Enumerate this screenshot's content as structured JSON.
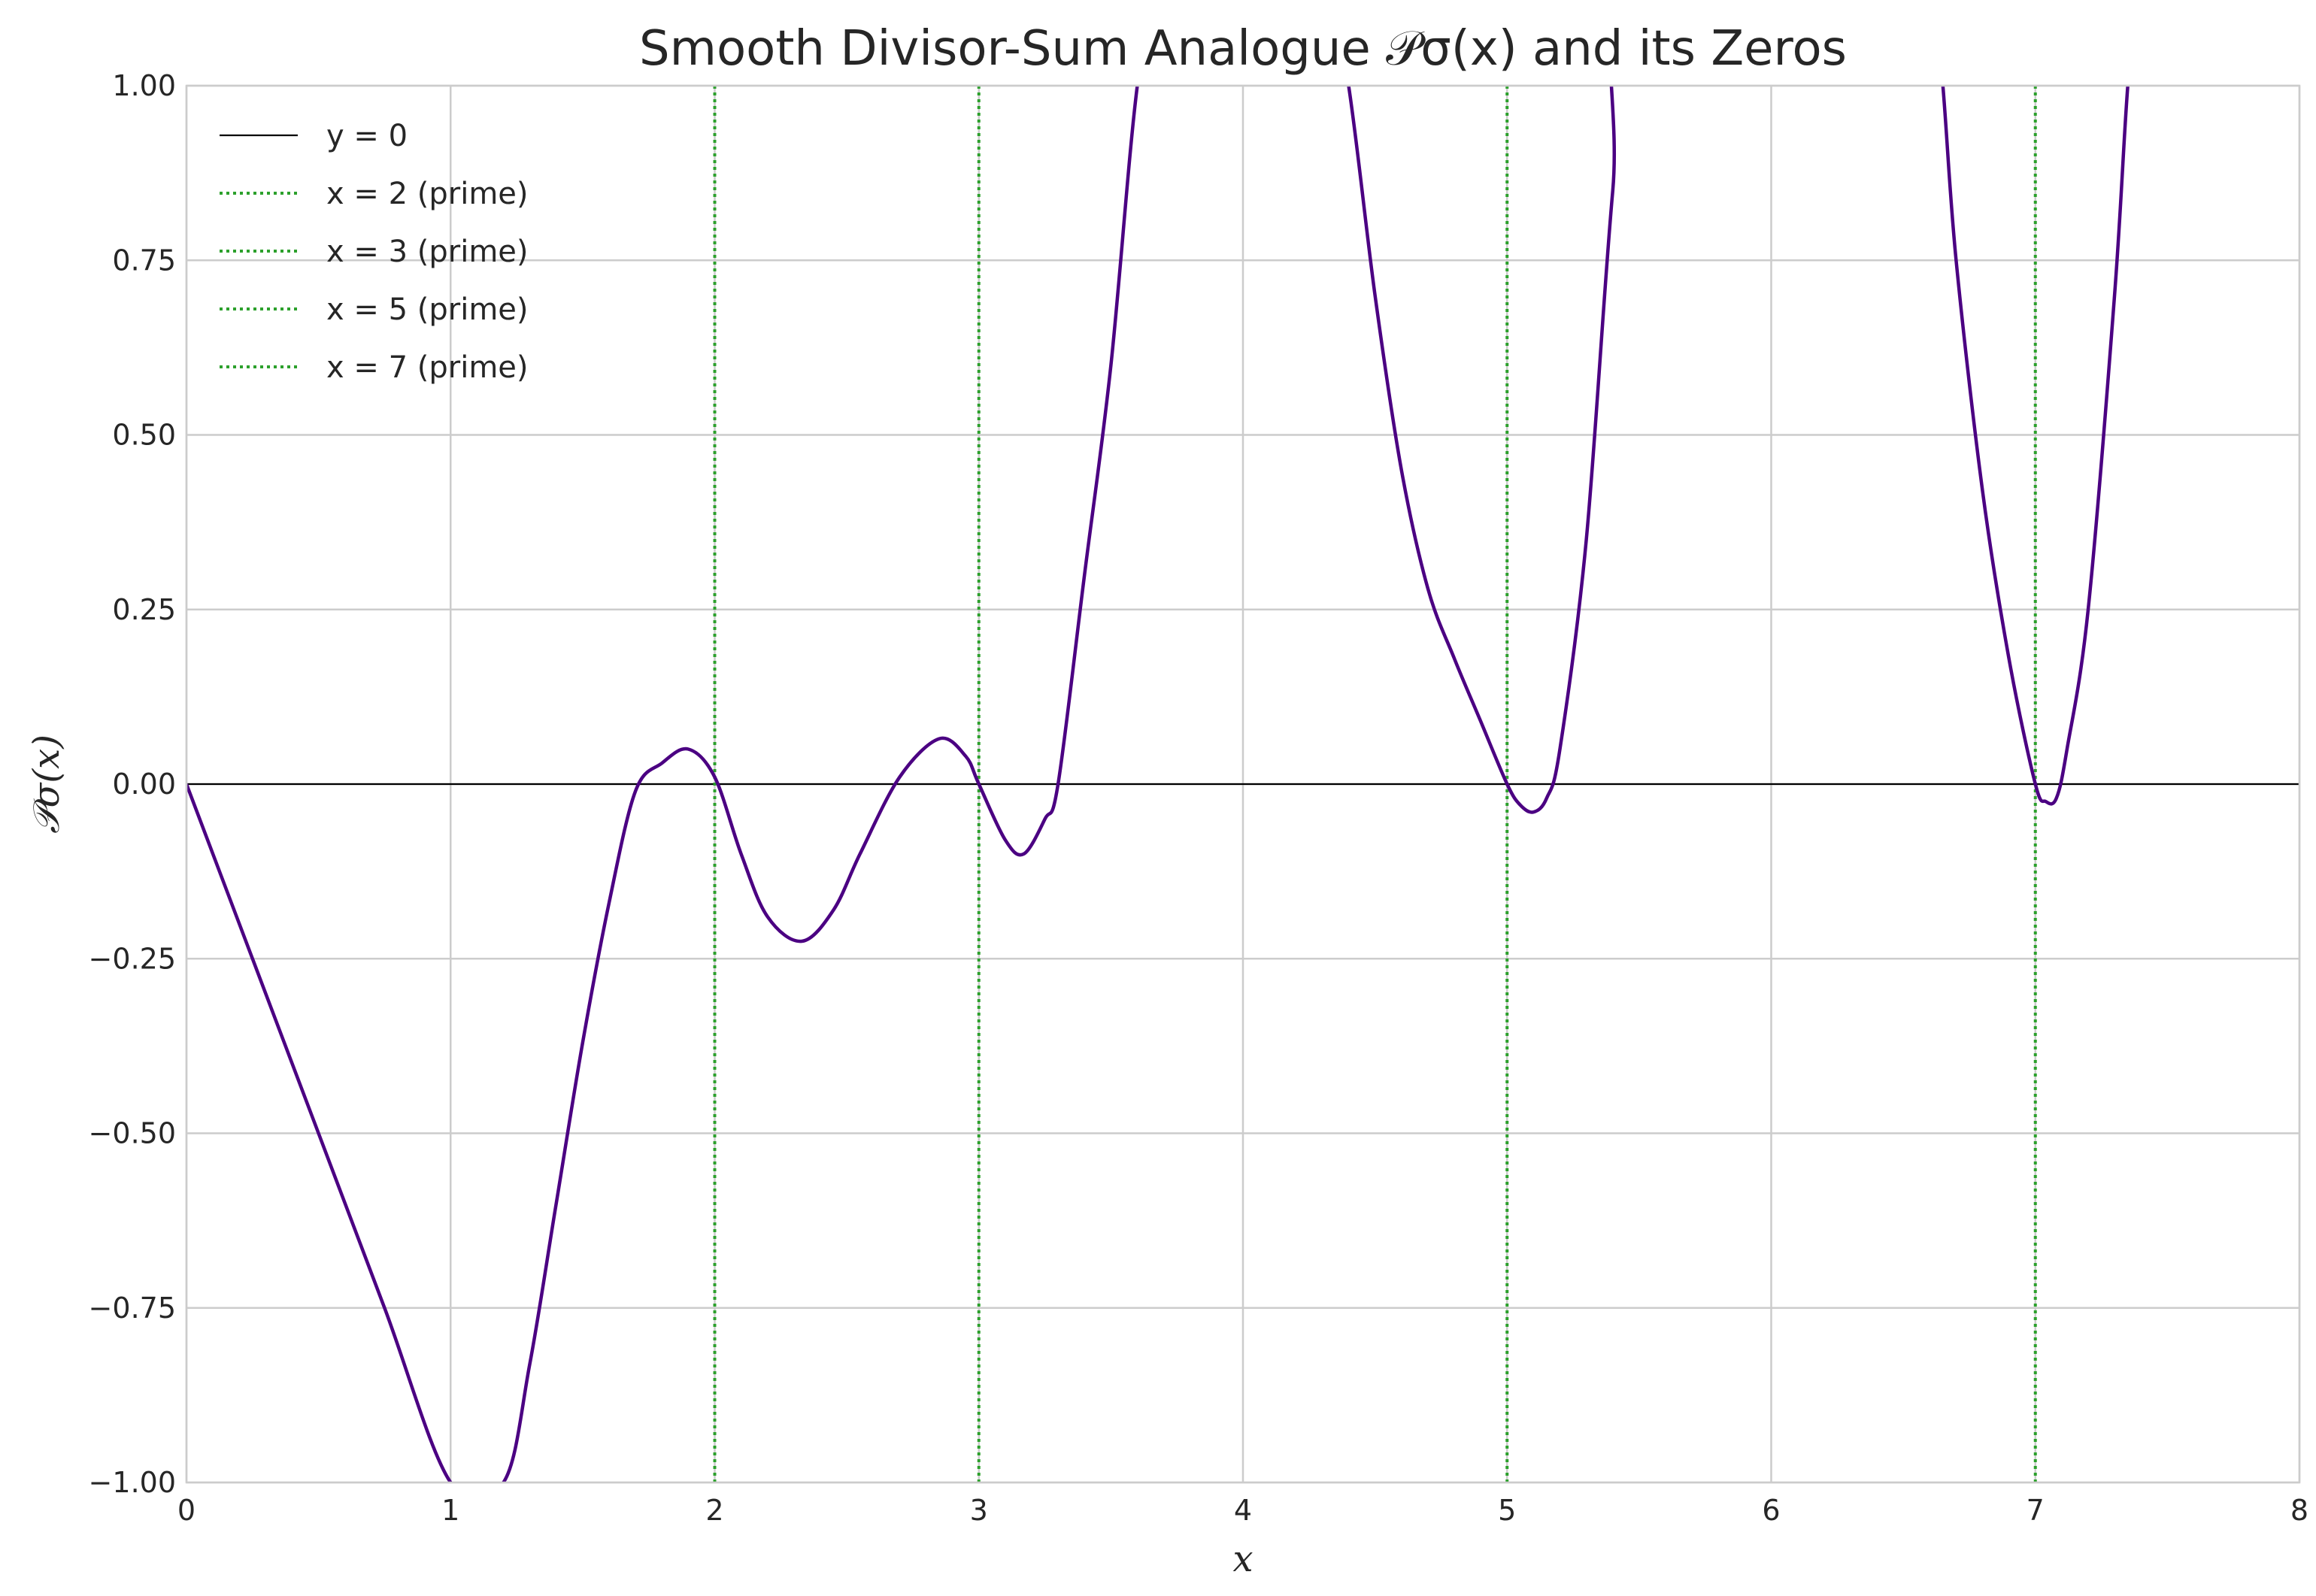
{
  "chart_data": {
    "type": "line",
    "title": "Smooth Divisor-Sum Analogue 𝒫σ(x) and its Zeros",
    "xlabel": "x",
    "ylabel": "𝒫σ(x)",
    "xlim": [
      0,
      8
    ],
    "ylim": [
      -1.0,
      1.0
    ],
    "xticks": [
      0,
      1,
      2,
      3,
      4,
      5,
      6,
      7,
      8
    ],
    "xtick_labels": [
      "0",
      "1",
      "2",
      "3",
      "4",
      "5",
      "6",
      "7",
      "8"
    ],
    "yticks": [
      -1.0,
      -0.75,
      -0.5,
      -0.25,
      0.0,
      0.25,
      0.5,
      0.75,
      1.0
    ],
    "ytick_labels": [
      "−1.00",
      "−0.75",
      "−0.50",
      "−0.25",
      "0.00",
      "0.25",
      "0.50",
      "0.75",
      "1.00"
    ],
    "grid": true,
    "legend_position": "top-left",
    "colors": {
      "curve": "#4b0082",
      "zero_line": "#000000",
      "prime_lines": "#2ca02c",
      "grid": "#cccccc",
      "frame": "#cccccc"
    },
    "reference_lines": [
      {
        "label": "y = 0",
        "orientation": "horizontal",
        "value": 0,
        "style": "solid"
      },
      {
        "label": "x = 2 (prime)",
        "orientation": "vertical",
        "value": 2,
        "style": "dotted"
      },
      {
        "label": "x = 3 (prime)",
        "orientation": "vertical",
        "value": 3,
        "style": "dotted"
      },
      {
        "label": "x = 5 (prime)",
        "orientation": "vertical",
        "value": 5,
        "style": "dotted"
      },
      {
        "label": "x = 7 (prime)",
        "orientation": "vertical",
        "value": 7,
        "style": "dotted"
      }
    ],
    "series": [
      {
        "x": [
          0.0,
          0.25,
          0.5,
          0.75,
          1.0,
          1.2,
          1.3,
          1.4,
          1.5,
          1.6,
          1.7,
          1.8,
          1.9,
          2.0,
          2.1,
          2.2,
          2.33,
          2.45,
          2.55,
          2.7,
          2.85,
          2.95,
          3.0,
          3.1,
          3.17,
          3.25,
          3.3,
          3.4,
          3.5,
          3.6,
          3.7,
          4.3,
          4.4,
          4.5,
          4.6,
          4.7,
          4.8,
          4.9,
          5.0,
          5.05,
          5.1,
          5.15,
          5.2,
          5.3,
          5.4,
          5.5,
          6.6,
          6.65,
          6.7,
          6.8,
          6.9,
          7.0,
          7.04,
          7.08,
          7.12,
          7.2,
          7.3,
          7.35,
          7.4
        ],
        "y": [
          0.0,
          -0.25,
          -0.5,
          -0.75,
          -1.0,
          -1.0,
          -0.83,
          -0.6,
          -0.37,
          -0.17,
          -0.01,
          0.03,
          0.05,
          0.01,
          -0.1,
          -0.19,
          -0.225,
          -0.18,
          -0.1,
          0.01,
          0.065,
          0.04,
          0.0,
          -0.08,
          -0.1,
          -0.05,
          0.0,
          0.3,
          0.6,
          1.0,
          1.2,
          1.2,
          1.0,
          0.7,
          0.45,
          0.28,
          0.18,
          0.09,
          0.0,
          -0.03,
          -0.04,
          -0.02,
          0.05,
          0.35,
          0.85,
          1.2,
          1.2,
          1.0,
          0.75,
          0.42,
          0.18,
          0.0,
          -0.025,
          -0.02,
          0.05,
          0.25,
          0.7,
          1.0,
          1.2
        ]
      }
    ]
  }
}
